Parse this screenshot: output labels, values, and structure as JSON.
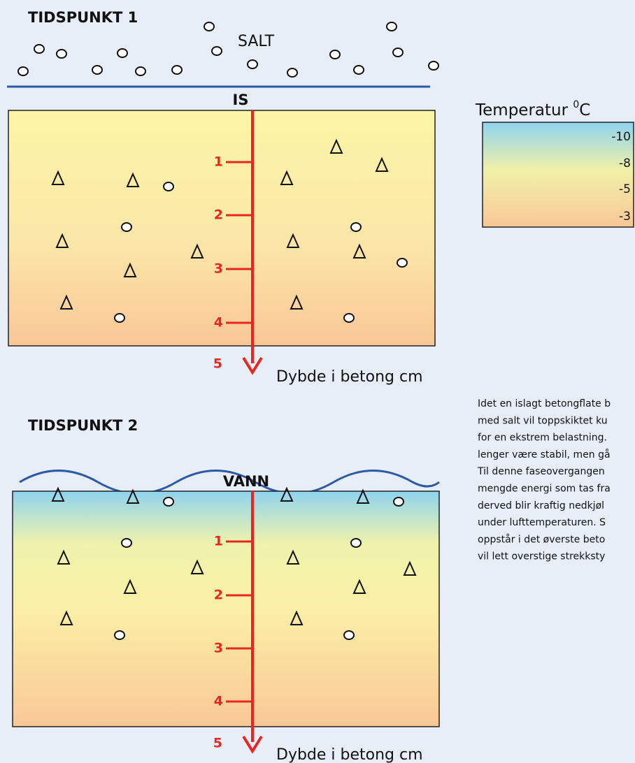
{
  "diagram_1": {
    "title": "TIDSPUNKT 1",
    "top_label": "SALT",
    "surface_label": "IS",
    "depth_ticks": [
      "1",
      "2",
      "3",
      "4",
      "5"
    ],
    "axis_label": "Dybde i betong cm"
  },
  "diagram_2": {
    "title": "TIDSPUNKT 2",
    "surface_label": "VANN",
    "depth_ticks": [
      "1",
      "2",
      "3",
      "4",
      "5"
    ],
    "axis_label": "Dybde i betong cm"
  },
  "legend": {
    "title": "Temperatur ",
    "title_sup": "0",
    "title_unit": "C",
    "labels": [
      "-10",
      "-8",
      "-5",
      "-3"
    ]
  },
  "paragraph": {
    "lines": [
      "Idet en islagt betongflate b",
      "med salt vil toppskiktet ku",
      "for en ekstrem belastning.",
      "lenger være stabil, men gå",
      "Til denne faseovergangen",
      "mengde energi som tas fra",
      "derved blir kraftig nedkjøl",
      "under lufttemperaturen. S",
      "oppstår i det øverste beto",
      "vil lett overstige strekksty"
    ]
  }
}
